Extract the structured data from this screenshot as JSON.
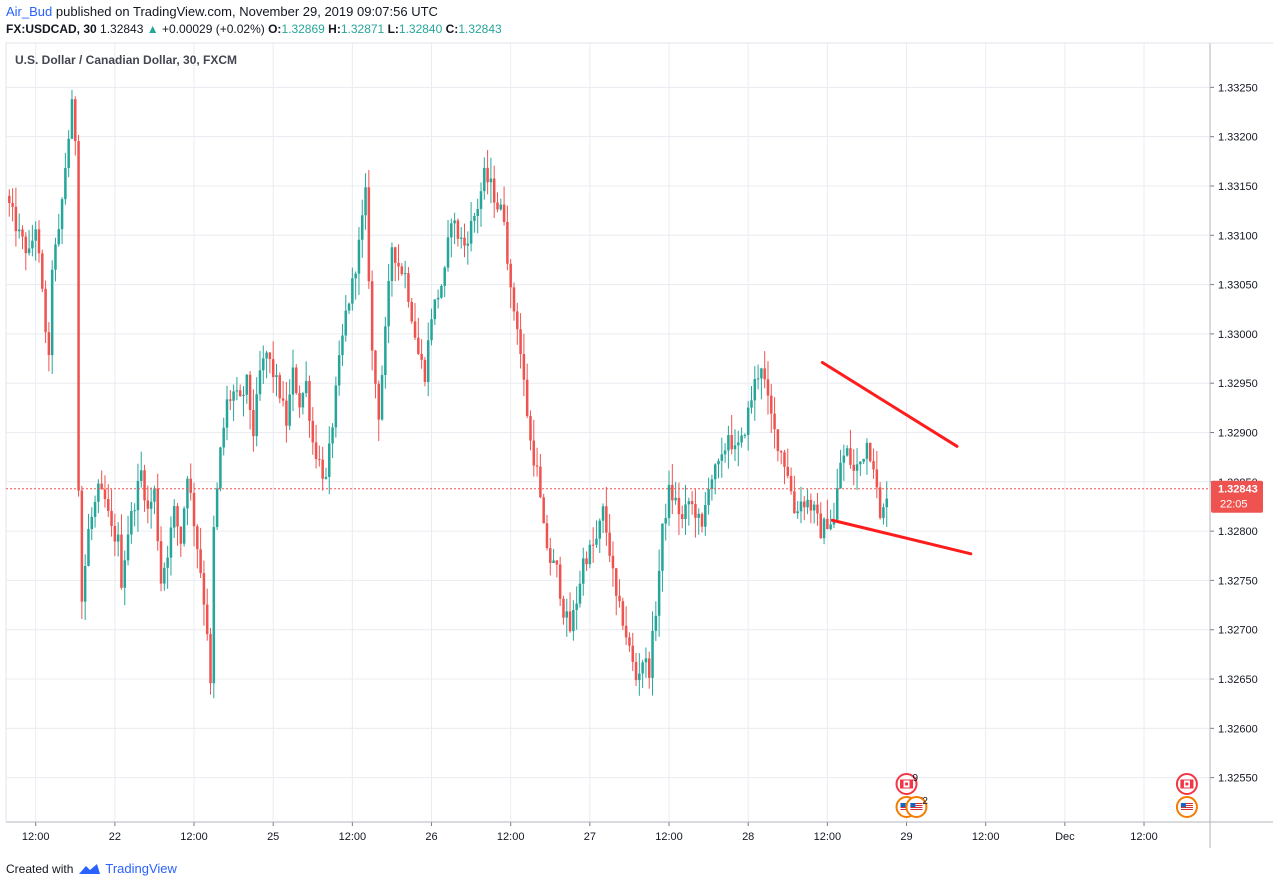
{
  "header": {
    "user": "Air_Bud",
    "published_text": "published on TradingView.com, November 29, 2019 09:07:56 UTC"
  },
  "quote": {
    "symbol": "FX:USDCAD, 30",
    "last": "1.32843",
    "change": "+0.00029 (+0.02%)",
    "o_label": "O:",
    "o": "1.32869",
    "h_label": "H:",
    "h": "1.32871",
    "l_label": "L:",
    "l": "1.32840",
    "c_label": "C:",
    "c": "1.32843"
  },
  "footer": {
    "created_with": "Created with",
    "brand": "TradingView"
  },
  "colors": {
    "up": "#26a69a",
    "down": "#ef5350",
    "trendline": "#ff1c1c",
    "grid": "#e9ecf1",
    "price_tag": "#ef5350"
  },
  "chart_data": {
    "type": "candlestick",
    "title": "U.S. Dollar / Canadian Dollar, 30, FXCM",
    "timeframe": "30",
    "y_ticks": [
      "1.32550",
      "1.32600",
      "1.32650",
      "1.32700",
      "1.32750",
      "1.32800",
      "1.32850",
      "1.32900",
      "1.32950",
      "1.33000",
      "1.33050",
      "1.33100",
      "1.33150",
      "1.33200",
      "1.33250"
    ],
    "ylim": [
      1.32505,
      1.33295
    ],
    "x_ticks": [
      "12:00",
      "22",
      "12:00",
      "25",
      "12:00",
      "26",
      "12:00",
      "27",
      "12:00",
      "28",
      "12:00",
      "29",
      "12:00",
      "Dec",
      "12:00"
    ],
    "x_tick_index": [
      8,
      32,
      56,
      80,
      104,
      128,
      152,
      176,
      200,
      224,
      248,
      272,
      296,
      320,
      344
    ],
    "index_range": [
      -1,
      364
    ],
    "last_price": "1.32843",
    "last_price_value": 1.32843,
    "countdown": "22:05",
    "close_path": [
      [
        0,
        1.3313
      ],
      [
        3,
        1.331
      ],
      [
        6,
        1.3308
      ],
      [
        8,
        1.3311
      ],
      [
        10,
        1.3304
      ],
      [
        12,
        1.3297
      ],
      [
        13,
        1.3307
      ],
      [
        15,
        1.331
      ],
      [
        17,
        1.3317
      ],
      [
        19,
        1.3323
      ],
      [
        20,
        1.332
      ],
      [
        21,
        1.3285
      ],
      [
        22,
        1.3273
      ],
      [
        24,
        1.328
      ],
      [
        27,
        1.3284
      ],
      [
        29,
        1.3283
      ],
      [
        31,
        1.328
      ],
      [
        33,
        1.3279
      ],
      [
        34,
        1.3275
      ],
      [
        36,
        1.328
      ],
      [
        38,
        1.3283
      ],
      [
        40,
        1.3286
      ],
      [
        42,
        1.3282
      ],
      [
        44,
        1.3284
      ],
      [
        46,
        1.3275
      ],
      [
        48,
        1.3278
      ],
      [
        50,
        1.3282
      ],
      [
        52,
        1.3279
      ],
      [
        54,
        1.3286
      ],
      [
        56,
        1.3281
      ],
      [
        58,
        1.3276
      ],
      [
        60,
        1.327
      ],
      [
        61,
        1.3264
      ],
      [
        62,
        1.328
      ],
      [
        64,
        1.3288
      ],
      [
        66,
        1.3293
      ],
      [
        68,
        1.3294
      ],
      [
        70,
        1.3293
      ],
      [
        72,
        1.3295
      ],
      [
        74,
        1.329
      ],
      [
        76,
        1.3296
      ],
      [
        78,
        1.3298
      ],
      [
        80,
        1.3296
      ],
      [
        82,
        1.3294
      ],
      [
        84,
        1.3291
      ],
      [
        86,
        1.3296
      ],
      [
        88,
        1.3293
      ],
      [
        90,
        1.3295
      ],
      [
        92,
        1.3289
      ],
      [
        94,
        1.3287
      ],
      [
        96,
        1.3285
      ],
      [
        98,
        1.3291
      ],
      [
        100,
        1.3297
      ],
      [
        102,
        1.3302
      ],
      [
        104,
        1.3305
      ],
      [
        106,
        1.3309
      ],
      [
        108,
        1.3314
      ],
      [
        110,
        1.3298
      ],
      [
        112,
        1.3292
      ],
      [
        114,
        1.33
      ],
      [
        116,
        1.3309
      ],
      [
        118,
        1.3307
      ],
      [
        120,
        1.3306
      ],
      [
        122,
        1.3302
      ],
      [
        124,
        1.3298
      ],
      [
        126,
        1.3296
      ],
      [
        128,
        1.3302
      ],
      [
        130,
        1.3304
      ],
      [
        132,
        1.3306
      ],
      [
        134,
        1.3312
      ],
      [
        136,
        1.331
      ],
      [
        138,
        1.3309
      ],
      [
        140,
        1.3311
      ],
      [
        142,
        1.3313
      ],
      [
        144,
        1.3316
      ],
      [
        146,
        1.3315
      ],
      [
        148,
        1.3313
      ],
      [
        150,
        1.3312
      ],
      [
        152,
        1.3304
      ],
      [
        154,
        1.3301
      ],
      [
        156,
        1.3295
      ],
      [
        158,
        1.3289
      ],
      [
        160,
        1.3286
      ],
      [
        162,
        1.328
      ],
      [
        164,
        1.3277
      ],
      [
        166,
        1.3276
      ],
      [
        168,
        1.3272
      ],
      [
        170,
        1.327
      ],
      [
        172,
        1.3273
      ],
      [
        174,
        1.3277
      ],
      [
        176,
        1.3278
      ],
      [
        178,
        1.3279
      ],
      [
        180,
        1.3282
      ],
      [
        182,
        1.3278
      ],
      [
        184,
        1.3273
      ],
      [
        186,
        1.3271
      ],
      [
        188,
        1.3268
      ],
      [
        190,
        1.3265
      ],
      [
        192,
        1.3267
      ],
      [
        194,
        1.3266
      ],
      [
        196,
        1.3272
      ],
      [
        198,
        1.328
      ],
      [
        200,
        1.3284
      ],
      [
        202,
        1.3283
      ],
      [
        204,
        1.3281
      ],
      [
        206,
        1.3283
      ],
      [
        208,
        1.3282
      ],
      [
        210,
        1.328
      ],
      [
        212,
        1.3285
      ],
      [
        214,
        1.3286
      ],
      [
        216,
        1.3287
      ],
      [
        218,
        1.329
      ],
      [
        220,
        1.3288
      ],
      [
        222,
        1.3289
      ],
      [
        224,
        1.3292
      ],
      [
        226,
        1.3295
      ],
      [
        228,
        1.3297
      ],
      [
        230,
        1.3293
      ],
      [
        232,
        1.329
      ],
      [
        234,
        1.3288
      ],
      [
        236,
        1.3286
      ],
      [
        238,
        1.3282
      ],
      [
        240,
        1.3283
      ],
      [
        242,
        1.3283
      ],
      [
        244,
        1.3282
      ],
      [
        246,
        1.328
      ],
      [
        248,
        1.3281
      ],
      [
        250,
        1.3281
      ],
      [
        252,
        1.3287
      ],
      [
        254,
        1.3288
      ],
      [
        256,
        1.3286
      ],
      [
        258,
        1.3287
      ],
      [
        260,
        1.3289
      ],
      [
        262,
        1.3287
      ],
      [
        264,
        1.3281
      ],
      [
        265,
        1.3282
      ],
      [
        266,
        1.3284
      ]
    ],
    "trendlines": [
      {
        "from": [
          246.5,
          1.32971
        ],
        "to": [
          287.3,
          1.32886
        ]
      },
      {
        "from": [
          249.5,
          1.32811
        ],
        "to": [
          291.5,
          1.32777
        ]
      }
    ],
    "events": [
      {
        "flag": "ca",
        "label": "9",
        "index": 272,
        "row": 0
      },
      {
        "flag": "us",
        "label": "24",
        "index": 272,
        "row": 1
      },
      {
        "flag": "us",
        "label": "2",
        "index": 275,
        "row": 1
      },
      {
        "flag": "ca",
        "label": "",
        "index": 357,
        "row": 0
      },
      {
        "flag": "us",
        "label": "",
        "index": 357,
        "row": 1
      }
    ]
  }
}
